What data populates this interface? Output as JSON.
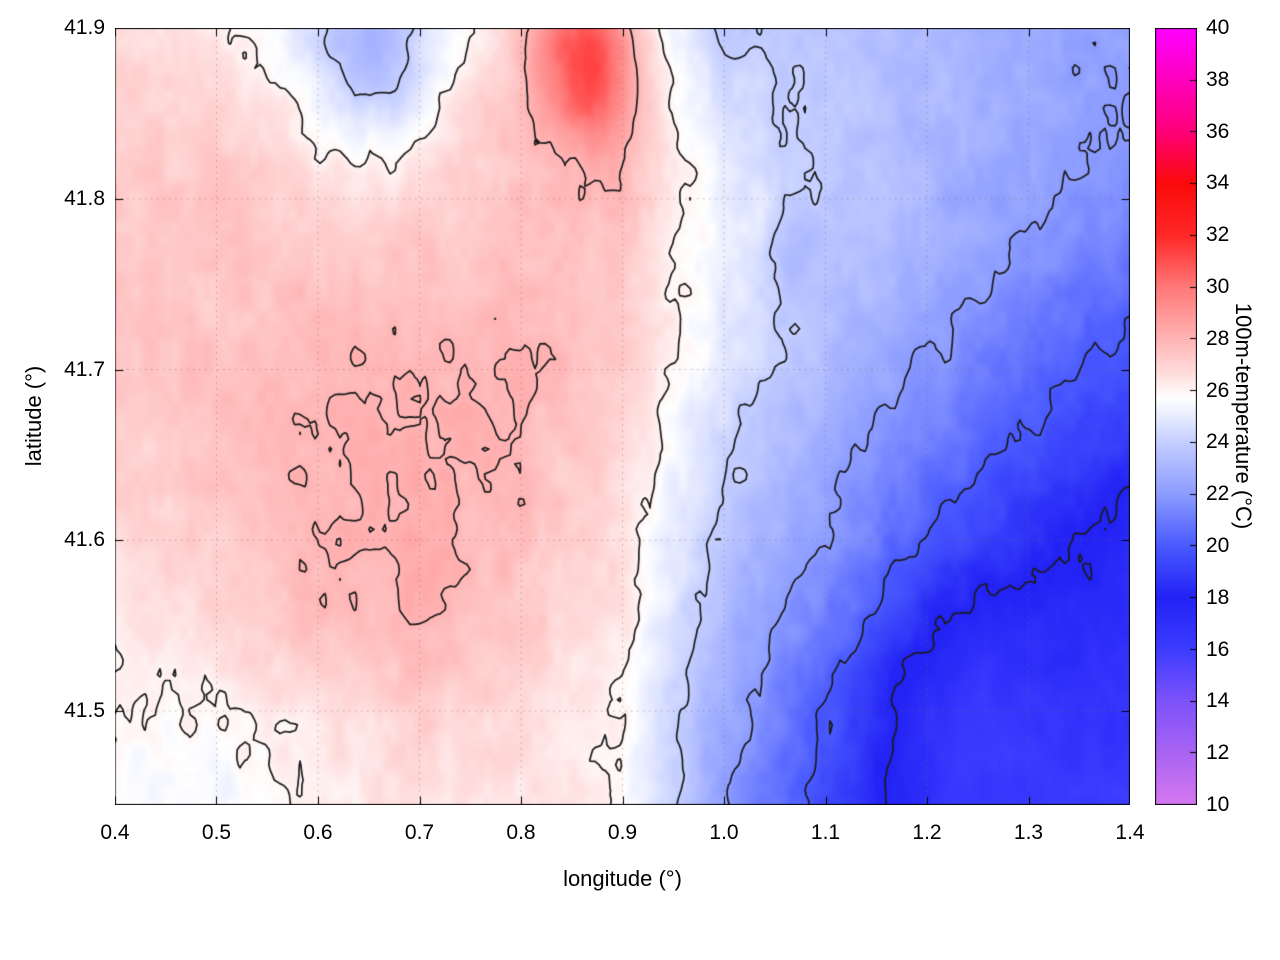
{
  "chart_data": {
    "type": "heatmap",
    "title": "",
    "xlabel": "longitude (°)",
    "ylabel": "latitude (°)",
    "colorbar_label": "100m-temperature (°C)",
    "x_range": [
      0.4,
      1.4
    ],
    "y_range": [
      41.445,
      41.9
    ],
    "colorbar_range": [
      10,
      40
    ],
    "x_ticks": [
      "0.4",
      "0.5",
      "0.6",
      "0.7",
      "0.8",
      "0.9",
      "1.0",
      "1.1",
      "1.2",
      "1.3",
      "1.4"
    ],
    "y_ticks": [
      "41.5",
      "41.6",
      "41.7",
      "41.8",
      "41.9"
    ],
    "colorbar_ticks": [
      "10",
      "12",
      "14",
      "16",
      "18",
      "20",
      "22",
      "24",
      "26",
      "28",
      "30",
      "32",
      "34",
      "36",
      "38",
      "40"
    ],
    "grid_on": true,
    "contour_levels": [
      18,
      20,
      22,
      24,
      26,
      28
    ],
    "contour_color": "#1c1c1c",
    "grid": {
      "lon_start": 0.4,
      "lon_step": 0.1,
      "lat_start": 41.9,
      "lat_step": 0.05,
      "values": [
        [
          26.6,
          26.3,
          24.8,
          25.4,
          27.0,
          26.5,
          24.0,
          23.6,
          23.2,
          22.6,
          22.2
        ],
        [
          27.0,
          27.0,
          26.2,
          26.3,
          27.4,
          27.4,
          24.6,
          23.8,
          23.2,
          22.6,
          21.8
        ],
        [
          27.2,
          27.4,
          27.0,
          27.1,
          27.4,
          27.5,
          25.2,
          23.9,
          23.0,
          22.2,
          21.6
        ],
        [
          27.4,
          27.3,
          27.5,
          27.5,
          27.7,
          27.2,
          25.2,
          23.8,
          22.6,
          21.6,
          20.6
        ],
        [
          27.4,
          27.5,
          27.8,
          28.0,
          28.0,
          27.0,
          24.8,
          23.2,
          22.0,
          20.6,
          19.6
        ],
        [
          27.0,
          27.5,
          28.0,
          28.2,
          27.8,
          26.8,
          24.2,
          22.6,
          21.0,
          19.6,
          18.6
        ],
        [
          26.8,
          27.2,
          28.0,
          28.1,
          27.6,
          26.6,
          23.6,
          22.0,
          20.2,
          18.6,
          17.6
        ],
        [
          26.3,
          26.8,
          27.6,
          28.0,
          27.3,
          26.3,
          23.0,
          21.0,
          19.0,
          17.6,
          17.0
        ],
        [
          25.9,
          25.9,
          26.6,
          27.1,
          26.8,
          26.0,
          22.6,
          20.0,
          18.0,
          17.0,
          16.6
        ],
        [
          25.6,
          25.4,
          26.1,
          26.6,
          26.4,
          25.9,
          22.1,
          19.6,
          17.6,
          16.6,
          16.1
        ]
      ]
    },
    "anomalies": [
      {
        "lon": 0.865,
        "lat": 41.885,
        "amp": 4.5,
        "sigma": 0.035
      },
      {
        "lon": 0.655,
        "lat": 41.88,
        "amp": -2.2,
        "sigma": 0.04
      },
      {
        "lon": 1.07,
        "lat": 41.763,
        "amp": -1.0,
        "sigma": 0.02
      },
      {
        "lon": 1.23,
        "lat": 41.5,
        "amp": -1.3,
        "sigma": 0.055
      }
    ],
    "palette_stops": [
      [
        10,
        213,
        120,
        239
      ],
      [
        12,
        169,
        99,
        242
      ],
      [
        14,
        126,
        82,
        250
      ],
      [
        16,
        60,
        60,
        255
      ],
      [
        18,
        34,
        34,
        245
      ],
      [
        20,
        74,
        90,
        255
      ],
      [
        22,
        140,
        156,
        255
      ],
      [
        24,
        196,
        206,
        255
      ],
      [
        25,
        232,
        236,
        255
      ],
      [
        25.7,
        255,
        255,
        255
      ],
      [
        26.5,
        255,
        226,
        226
      ],
      [
        28,
        255,
        180,
        180
      ],
      [
        30,
        255,
        120,
        120
      ],
      [
        32,
        255,
        40,
        40
      ],
      [
        34,
        250,
        10,
        10
      ],
      [
        36,
        255,
        0,
        120
      ],
      [
        38,
        255,
        0,
        190
      ],
      [
        40,
        255,
        0,
        255
      ]
    ]
  }
}
